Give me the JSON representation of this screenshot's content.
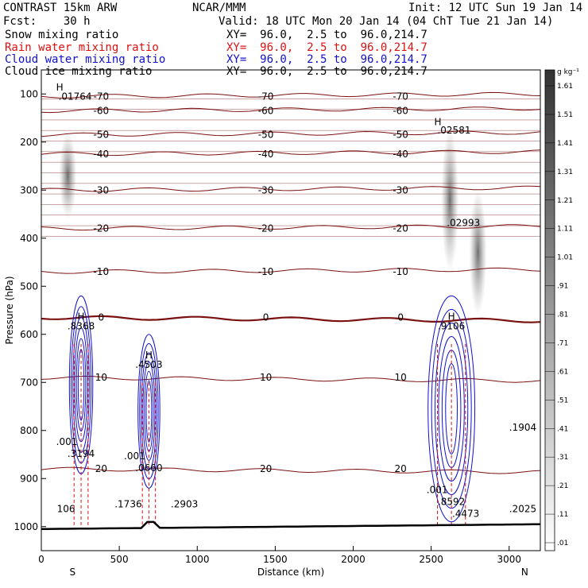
{
  "header": {
    "model": "CONTRAST 15km ARW",
    "source": "NCAR/MMM",
    "init": "Init: 12 UTC Sun 19 Jan 14",
    "fcst": "Fcst:    30 h",
    "valid": "Valid: 18 UTC Mon 20 Jan 14 (04 ChT Tue 21 Jan 14)",
    "fields": [
      {
        "name": "Snow mixing ratio",
        "xy": "XY=  96.0,  2.5 to  96.0,214.7",
        "color": "#000000"
      },
      {
        "name": "Rain water mixing ratio",
        "xy": "XY=  96.0,  2.5 to  96.0,214.7",
        "color": "#dd1111"
      },
      {
        "name": "Cloud water mixing ratio",
        "xy": "XY=  96.0,  2.5 to  96.0,214.7",
        "color": "#1111cc"
      },
      {
        "name": "Cloud ice mixing ratio",
        "xy": "XY=  96.0,  2.5 to  96.0,214.7",
        "color": "#000000"
      }
    ]
  },
  "chart_data": {
    "type": "cross-section",
    "xlabel": "Distance (km)",
    "ylabel": "Pressure (hPa)",
    "xlim": [
      0,
      3200
    ],
    "ylim": [
      1050,
      50
    ],
    "xticks": [
      0,
      500,
      1000,
      1500,
      2000,
      2500,
      3000
    ],
    "yticks": [
      100,
      200,
      300,
      400,
      500,
      600,
      700,
      800,
      900,
      1000
    ],
    "endpoints": {
      "left": "S",
      "right": "N"
    },
    "colorbar": {
      "unit": "g kg⁻¹",
      "levels": [
        "1.61",
        "1.51",
        "1.41",
        "1.31",
        "1.21",
        "1.11",
        "1.01",
        ".91",
        ".81",
        ".71",
        ".61",
        ".51",
        ".41",
        ".31",
        ".21",
        ".11",
        ".01"
      ]
    },
    "temperature_contours": [
      {
        "label": "-70",
        "p": 105,
        "color": "#7a1010"
      },
      {
        "label": "-60",
        "p": 135,
        "color": "#7a1010"
      },
      {
        "label": "-50",
        "p": 185,
        "color": "#7a1010"
      },
      {
        "label": "-40",
        "p": 225,
        "color": "#7a1010"
      },
      {
        "label": "-30",
        "p": 300,
        "color": "#7a1010"
      },
      {
        "label": "-20",
        "p": 380,
        "color": "#7a1010"
      },
      {
        "label": "-10",
        "p": 470,
        "color": "#7a1010"
      },
      {
        "label": "0",
        "p": 565,
        "color": "#7a1010"
      },
      {
        "label": "10",
        "p": 690,
        "color": "#7a1010"
      },
      {
        "label": "20",
        "p": 880,
        "color": "#7a1010"
      }
    ],
    "snow_columns": [
      {
        "x": 170,
        "p_top": 180,
        "p_bot": 360
      },
      {
        "x": 2620,
        "p_top": 170,
        "p_bot": 470
      },
      {
        "x": 2800,
        "p_top": 300,
        "p_bot": 560
      }
    ],
    "cloud_water_regions": [
      {
        "x0": 180,
        "x1": 330,
        "p_top": 520,
        "p_bot": 890,
        "max": ".8368",
        "labels": [
          ".001",
          ".3194"
        ]
      },
      {
        "x0": 620,
        "x1": 760,
        "p_top": 600,
        "p_bot": 920,
        "max": ".4503",
        "labels": [
          ".001",
          ".0660"
        ]
      },
      {
        "x0": 2480,
        "x1": 2780,
        "p_top": 520,
        "p_bot": 990,
        "max": ".9106",
        "labels": [
          ".001",
          ".8592",
          ".4473"
        ]
      }
    ],
    "annotations": [
      {
        "text": "H",
        "x": 95,
        "p": 93,
        "color": "#000000"
      },
      {
        "text": ".01764",
        "x": 110,
        "p": 112,
        "color": "#000000"
      },
      {
        "text": "H",
        "x": 2520,
        "p": 165,
        "color": "#000000"
      },
      {
        "text": ".02581",
        "x": 2540,
        "p": 182,
        "color": "#000000"
      },
      {
        "text": ".02993",
        "x": 2600,
        "p": 375,
        "color": "#000000"
      },
      {
        "text": ".1904",
        "x": 3000,
        "p": 800,
        "color": "#1111cc"
      },
      {
        "text": ".2025",
        "x": 3000,
        "p": 970,
        "color": "#1111cc"
      },
      {
        "text": "106",
        "x": 100,
        "p": 970,
        "color": "#1111cc"
      },
      {
        "text": ".1736",
        "x": 470,
        "p": 960,
        "color": "#1111cc"
      },
      {
        "text": ".2903",
        "x": 830,
        "p": 960,
        "color": "#1111cc"
      }
    ]
  }
}
